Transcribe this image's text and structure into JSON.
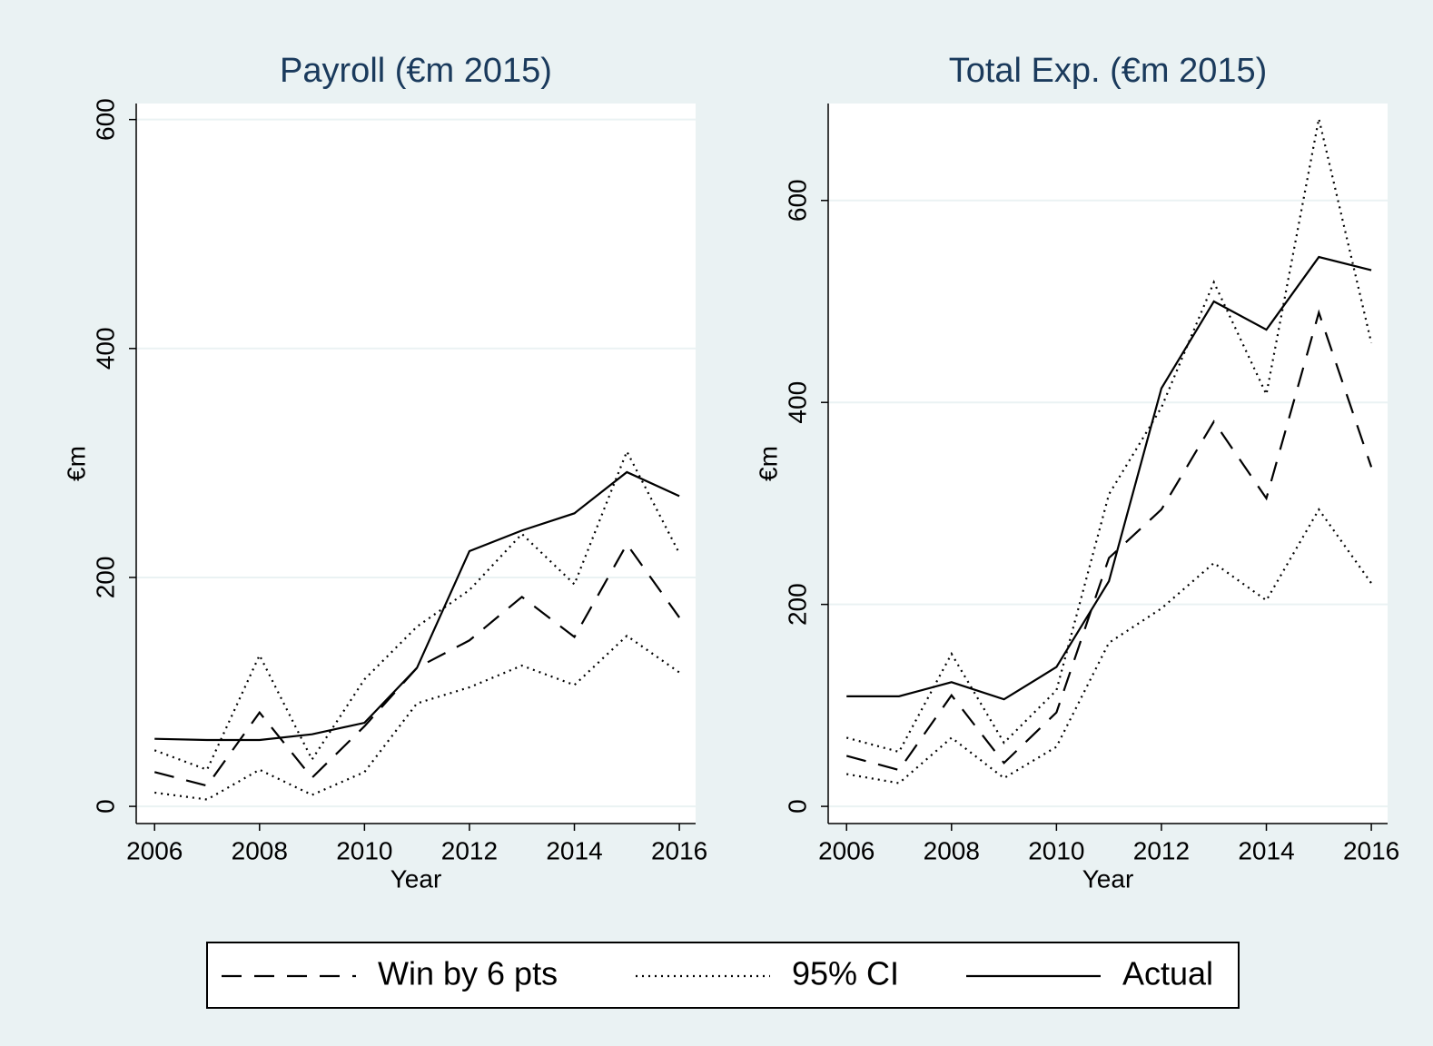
{
  "chart_data": [
    {
      "type": "line",
      "title": "Payroll (€m 2015)",
      "xlabel": "Year",
      "ylabel": "€m",
      "x": [
        2006,
        2007,
        2008,
        2009,
        2010,
        2011,
        2012,
        2013,
        2014,
        2015,
        2016
      ],
      "xlim": [
        2005.65,
        2016.31
      ],
      "xticks": [
        2006,
        2008,
        2010,
        2012,
        2014,
        2016
      ],
      "ylim": [
        -15,
        614
      ],
      "yticks": [
        0,
        200,
        400,
        600
      ],
      "grid": true,
      "legend": "bottom",
      "series": [
        {
          "name": "Win by 6 pts",
          "color": "#000000",
          "linestyle": "dashed",
          "values": [
            30,
            18,
            82,
            25,
            70,
            121,
            145,
            183,
            148,
            229,
            165
          ]
        },
        {
          "name": "95% CI",
          "color": "#000000",
          "linestyle": "dotted",
          "values": [
            12,
            6,
            32,
            10,
            30,
            90,
            104,
            123,
            106,
            149,
            117
          ],
          "upper": [
            49,
            32,
            132,
            41,
            111,
            157,
            189,
            238,
            194,
            310,
            221
          ]
        },
        {
          "name": "Actual",
          "color": "#000000",
          "linestyle": "solid",
          "values": [
            59,
            58,
            58,
            63,
            73,
            121,
            223,
            241,
            256,
            292,
            271
          ]
        }
      ]
    },
    {
      "type": "line",
      "title": "Total Exp. (€m 2015)",
      "xlabel": "Year",
      "ylabel": "€m",
      "x": [
        2006,
        2007,
        2008,
        2009,
        2010,
        2011,
        2012,
        2013,
        2014,
        2015,
        2016
      ],
      "xlim": [
        2005.65,
        2016.31
      ],
      "xticks": [
        2006,
        2008,
        2010,
        2012,
        2014,
        2016
      ],
      "ylim": [
        -17,
        696
      ],
      "yticks": [
        0,
        200,
        400,
        600
      ],
      "grid": true,
      "series": [
        {
          "name": "Win by 6 pts",
          "color": "#000000",
          "linestyle": "dashed",
          "values": [
            50,
            36,
            110,
            43,
            93,
            246,
            294,
            381,
            305,
            489,
            336
          ]
        },
        {
          "name": "95% CI",
          "color": "#000000",
          "linestyle": "dotted",
          "values": [
            32,
            23,
            68,
            28,
            59,
            162,
            196,
            241,
            204,
            294,
            221
          ],
          "upper": [
            68,
            54,
            151,
            63,
            115,
            309,
            395,
            519,
            408,
            681,
            459
          ]
        },
        {
          "name": "Actual",
          "color": "#000000",
          "linestyle": "solid",
          "values": [
            109,
            109,
            123,
            106,
            138,
            223,
            414,
            500,
            472,
            544,
            531
          ]
        }
      ]
    }
  ]
}
